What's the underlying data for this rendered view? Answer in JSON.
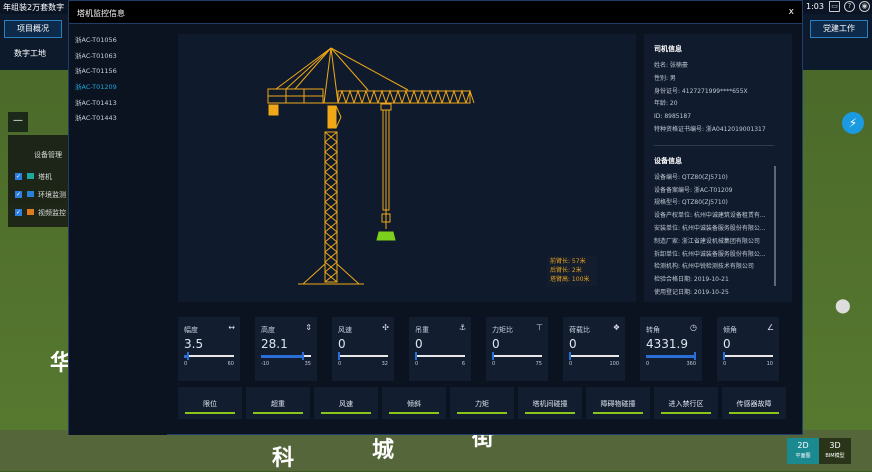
{
  "app": {
    "title": "年组装2万套数字",
    "clock": "1:03",
    "nav_left": "项目概况",
    "nav_right": "党建工作",
    "subnav": "数字工地",
    "zoom_out": "—",
    "bg_labels": [
      "科",
      "城",
      "街",
      "华"
    ],
    "device_panel": {
      "title": "设备管理",
      "items": [
        {
          "label": "塔机",
          "checked": true,
          "color": "#1aa8a0"
        },
        {
          "label": "环境监测",
          "checked": true,
          "color": "#2a80d8"
        },
        {
          "label": "视频监控",
          "checked": true,
          "color": "#e07a20"
        }
      ]
    },
    "view_modes": [
      {
        "label": "2D",
        "sub": "平面图",
        "active": true
      },
      {
        "label": "3D",
        "sub": "BIM模型",
        "active": false
      }
    ]
  },
  "modal": {
    "title": "塔机监控信息",
    "close": "x",
    "cranes": [
      {
        "id": "浙AC-T01056"
      },
      {
        "id": "浙AC-T01063"
      },
      {
        "id": "浙AC-T01156"
      },
      {
        "id": "浙AC-T01209",
        "active": true
      },
      {
        "id": "浙AC-T01413"
      },
      {
        "id": "浙AC-T01443"
      }
    ],
    "dims": [
      "前臂长: 57米",
      "后臂长: 2米",
      "塔臂高: 100米"
    ],
    "driver": {
      "title": "司机信息",
      "rows": [
        "姓名: 张楠豪",
        "性别: 男",
        "身份证号: 4127271999****655X",
        "年龄: 20",
        "ID: 8985187",
        "特种资格证书编号: 浙A0412019001317"
      ]
    },
    "device": {
      "title": "设备信息",
      "rows": [
        "设备编号: QTZ80(ZJ5710)",
        "设备备案编号: 浙AC-T01209",
        "规格型号: QTZ80(ZJ5710)",
        "设备产权单位: 杭州中诚建筑设备租赁有...",
        "安装单位: 杭州中诚装备服务股份有限公...",
        "制造厂家: 浙江省建设机械集团有限公司",
        "拆卸单位: 杭州中诚装备服务股份有限公...",
        "检测机构: 杭州中锐检测技术有限公司",
        "检验合格日期: 2019-10-21",
        "使用登记日期: 2019-10-25"
      ]
    },
    "gauges": [
      {
        "name": "幅度",
        "icon": "width-icon",
        "glyph": "↔",
        "value": "3.5",
        "unit": "m",
        "min": 0,
        "max": 60,
        "min_label": "0",
        "max_label": "60",
        "current": 3.5
      },
      {
        "name": "高度",
        "icon": "height-icon",
        "glyph": "⇕",
        "value": "28.1",
        "unit": "m",
        "min": -10,
        "max": 35,
        "min_label": "-10",
        "max_label": "35",
        "current": 28.1
      },
      {
        "name": "风速",
        "icon": "fan-icon",
        "glyph": "✣",
        "value": "0",
        "unit": "m/s",
        "min": 0,
        "max": 32,
        "min_label": "0",
        "max_label": "32",
        "current": 0
      },
      {
        "name": "吊重",
        "icon": "hook-icon",
        "glyph": "⚓",
        "value": "0",
        "unit": "t",
        "min": 0,
        "max": 6,
        "min_label": "0",
        "max_label": "6",
        "current": 0
      },
      {
        "name": "力矩比",
        "icon": "moment-icon",
        "glyph": "⊤",
        "value": "0",
        "unit": "%",
        "min": 0,
        "max": 75,
        "min_label": "0",
        "max_label": "75",
        "current": 0
      },
      {
        "name": "荷载比",
        "icon": "load-icon",
        "glyph": "❖",
        "value": "0",
        "unit": "%",
        "min": 0,
        "max": 100,
        "min_label": "0",
        "max_label": "100",
        "current": 0
      },
      {
        "name": "转角",
        "icon": "dial-icon",
        "glyph": "◷",
        "value": "4331.9",
        "unit": "",
        "min": 0,
        "max": 360,
        "min_label": "0",
        "max_label": "360",
        "current": 360
      },
      {
        "name": "倾角",
        "icon": "angle-icon",
        "glyph": "∠",
        "value": "0",
        "unit": "",
        "min": 0,
        "max": 10,
        "min_label": "0",
        "max_label": "10",
        "current": 0
      }
    ],
    "alarms": [
      "限位",
      "超重",
      "风速",
      "倾斜",
      "力矩",
      "塔机间碰撞",
      "障碍物碰撞",
      "进入禁行区",
      "传感器故障"
    ],
    "colors": {
      "crane": "#f0a818",
      "hook": "#7ccf1a",
      "alarm_ok": "#8bc51c",
      "gauge_fill": "#2a6fd8"
    }
  }
}
